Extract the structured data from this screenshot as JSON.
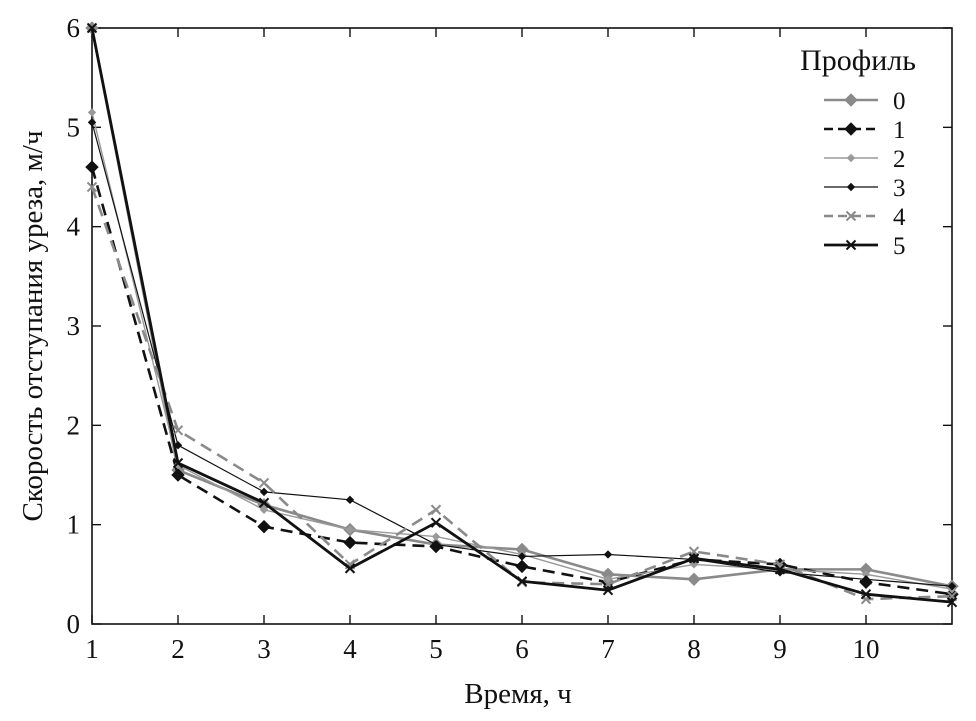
{
  "chart_data": {
    "type": "line",
    "title": "",
    "xlabel": "Время, ч",
    "ylabel": "Скорость отступания уреза, м/ч",
    "xlim": [
      1,
      11
    ],
    "ylim": [
      0,
      6
    ],
    "x_ticks": [
      1,
      2,
      3,
      4,
      5,
      6,
      7,
      8,
      9,
      10
    ],
    "y_ticks": [
      0,
      1,
      2,
      3,
      4,
      5,
      6
    ],
    "x": [
      1,
      2,
      3,
      4,
      5,
      6,
      7,
      8,
      9,
      10,
      11
    ],
    "legend": {
      "title": "Профиль",
      "position": "top-right"
    },
    "grid": false,
    "series": [
      {
        "name": "0",
        "color": "#8a8a8a",
        "dash": "",
        "width": 2.6,
        "marker": "diamond",
        "values": [
          6.0,
          1.55,
          1.2,
          0.95,
          0.8,
          0.75,
          0.5,
          0.45,
          0.55,
          0.55,
          0.38
        ]
      },
      {
        "name": "1",
        "color": "#111111",
        "dash": "12,7",
        "width": 2.6,
        "marker": "diamond",
        "values": [
          4.6,
          1.5,
          0.98,
          0.82,
          0.78,
          0.58,
          0.42,
          0.65,
          0.6,
          0.42,
          0.3
        ]
      },
      {
        "name": "2",
        "color": "#9a9a9a",
        "dash": "",
        "width": 1.4,
        "marker": "diamond-small",
        "values": [
          5.15,
          1.6,
          1.15,
          0.95,
          0.88,
          0.7,
          0.45,
          0.6,
          0.55,
          0.5,
          0.35
        ]
      },
      {
        "name": "3",
        "color": "#111111",
        "dash": "",
        "width": 1.2,
        "marker": "diamond-small",
        "values": [
          5.05,
          1.8,
          1.33,
          1.25,
          0.8,
          0.68,
          0.7,
          0.65,
          0.52,
          0.45,
          0.38
        ]
      },
      {
        "name": "4",
        "color": "#8a8a8a",
        "dash": "12,7",
        "width": 2.6,
        "marker": "x",
        "values": [
          4.4,
          1.95,
          1.42,
          0.6,
          1.15,
          0.42,
          0.4,
          0.73,
          0.6,
          0.25,
          0.28
        ]
      },
      {
        "name": "5",
        "color": "#111111",
        "dash": "",
        "width": 2.8,
        "marker": "x",
        "values": [
          6.0,
          1.62,
          1.22,
          0.56,
          1.02,
          0.43,
          0.34,
          0.66,
          0.55,
          0.3,
          0.22
        ]
      }
    ]
  }
}
